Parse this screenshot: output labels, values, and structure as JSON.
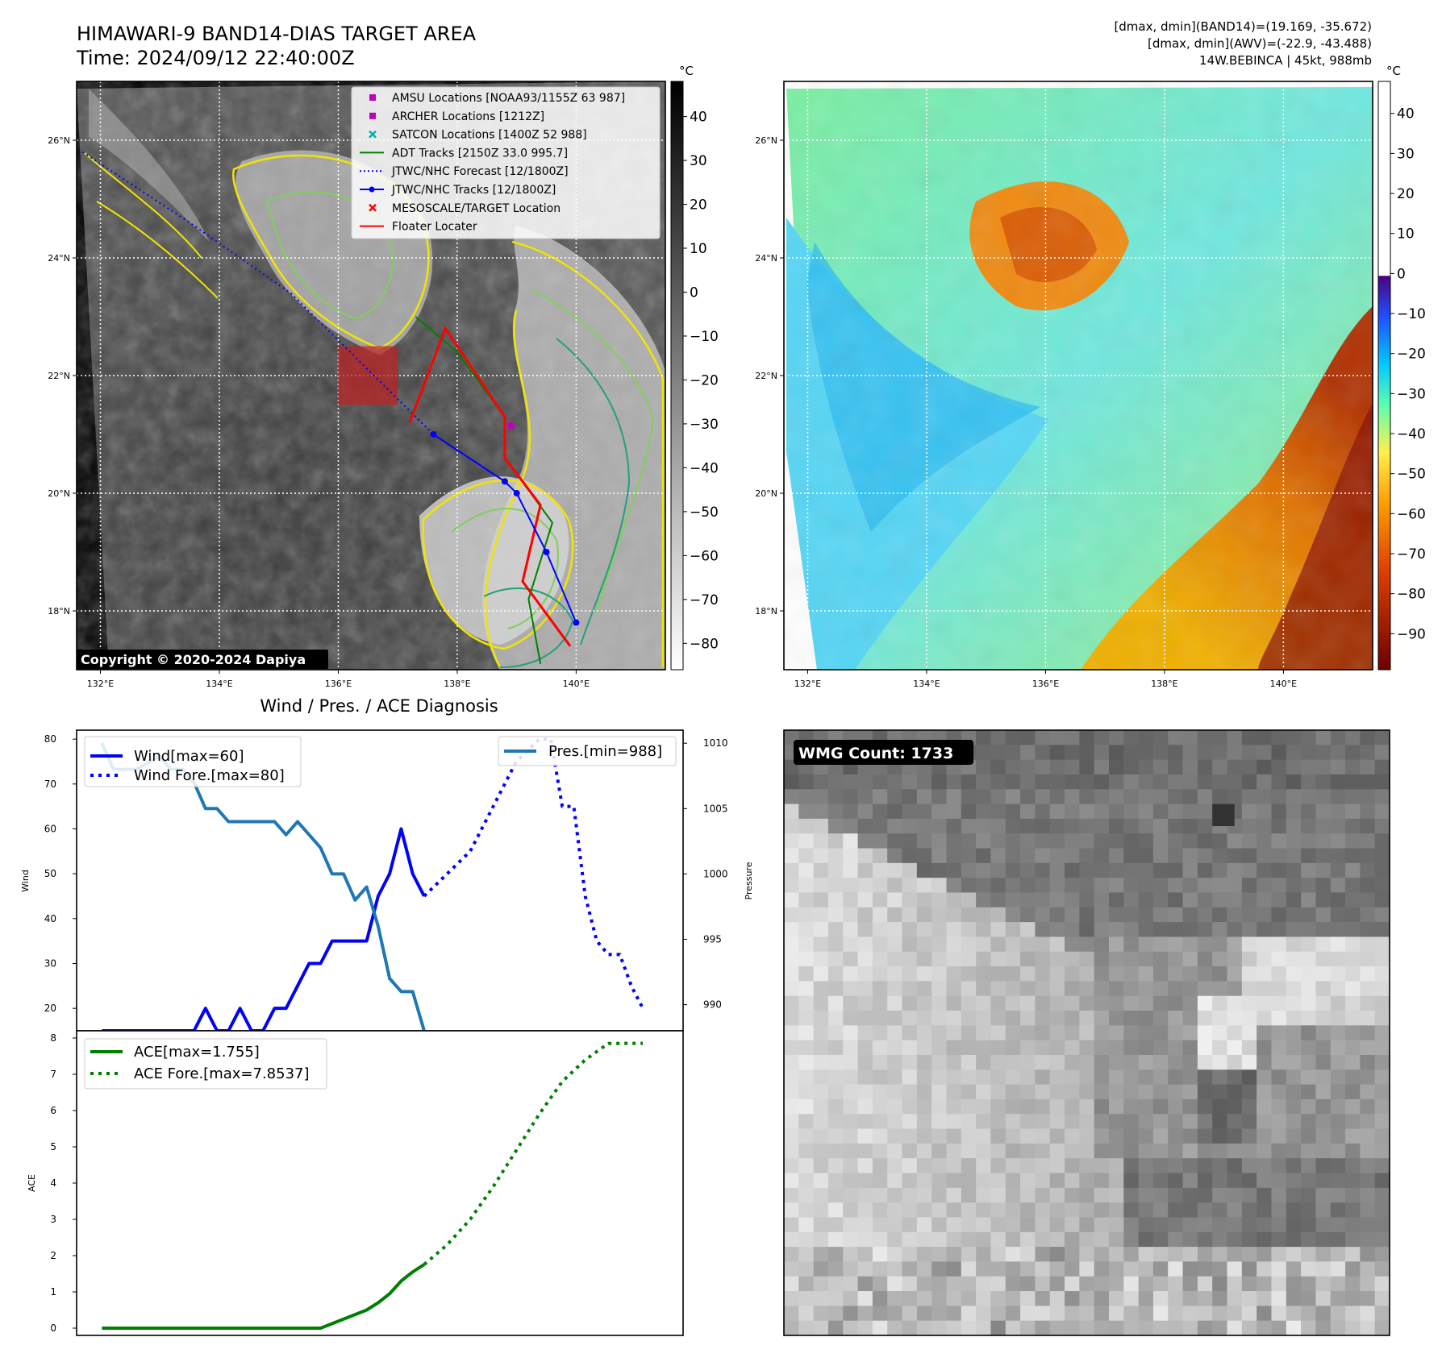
{
  "header": {
    "title_line1": "HIMAWARI-9 BAND14-DIAS TARGET AREA",
    "title_line2": "Time: 2024/09/12 22:40:00Z",
    "info_line1": "[dmax, dmin](BAND14)=(19.169, -35.672)",
    "info_line2": "[dmax, dmin](AWV)=(-22.9, -43.488)",
    "info_line3": "14W.BEBINCA | 45kt, 988mb"
  },
  "map": {
    "lon_ticks": [
      "132°E",
      "134°E",
      "136°E",
      "138°E",
      "140°E"
    ],
    "lat_ticks": [
      "26°N",
      "24°N",
      "22°N",
      "20°N",
      "18°N"
    ],
    "lon_range": [
      131.6,
      141.5
    ],
    "lat_range": [
      17.0,
      27.0
    ],
    "copyright": "Copyright © 2020-2024 Dapiya",
    "legend": [
      {
        "label": "AMSU Locations [NOAA93/1155Z 63 987]",
        "color": "#c000c0",
        "marker": "square"
      },
      {
        "label": "ARCHER Locations [1212Z]",
        "color": "#c000c0",
        "marker": "square"
      },
      {
        "label": "SATCON Locations [1400Z 52 988]",
        "color": "#00b0b0",
        "marker": "x"
      },
      {
        "label": "ADT Tracks [2150Z 33.0 995.7]",
        "color": "#008000",
        "marker": "line"
      },
      {
        "label": "JTWC/NHC Forecast [12/1800Z]",
        "color": "#0000ff",
        "marker": "dotted"
      },
      {
        "label": "JTWC/NHC Tracks [12/1800Z]",
        "color": "#0000ff",
        "marker": "line-dot"
      },
      {
        "label": "MESOSCALE/TARGET Location",
        "color": "#ff0000",
        "marker": "x"
      },
      {
        "label": "Floater Locater",
        "color": "#ff0000",
        "marker": "line"
      }
    ],
    "jtwc_track": [
      [
        137.6,
        21.0
      ],
      [
        138.8,
        20.2
      ],
      [
        139.0,
        20.0
      ],
      [
        139.5,
        19.0
      ],
      [
        140.0,
        17.8
      ]
    ],
    "jtwc_forecast": [
      [
        131.7,
        25.8
      ],
      [
        133.5,
        24.6
      ],
      [
        135.2,
        23.4
      ],
      [
        136.5,
        22.1
      ],
      [
        137.6,
        21.0
      ]
    ],
    "adt_track": [
      [
        137.3,
        23.0
      ],
      [
        138.0,
        22.4
      ],
      [
        138.8,
        21.3
      ],
      [
        138.8,
        20.6
      ],
      [
        139.6,
        19.5
      ],
      [
        139.2,
        18.2
      ],
      [
        139.4,
        17.1
      ]
    ],
    "floater_track": [
      [
        137.2,
        21.2
      ],
      [
        137.8,
        22.8
      ],
      [
        138.2,
        22.2
      ],
      [
        138.8,
        21.3
      ],
      [
        138.8,
        20.6
      ],
      [
        139.4,
        19.8
      ],
      [
        139.1,
        18.5
      ],
      [
        139.9,
        17.4
      ]
    ],
    "target_box": {
      "lon": [
        136.0,
        137.0
      ],
      "lat": [
        21.5,
        22.5
      ]
    },
    "amsu_marker": [
      138.9,
      21.15
    ],
    "colorbar1": {
      "unit": "°C",
      "ticks": [
        "40",
        "30",
        "20",
        "10",
        "0",
        "−10",
        "−20",
        "−30",
        "−40",
        "−50",
        "−60",
        "−70",
        "−80"
      ]
    },
    "colorbar2": {
      "unit": "°C",
      "ticks": [
        "40",
        "30",
        "20",
        "10",
        "0",
        "−10",
        "−20",
        "−30",
        "−40",
        "−50",
        "−60",
        "−70",
        "−80",
        "−90"
      ]
    }
  },
  "chart_data": [
    {
      "type": "line",
      "title": "Wind / Pres. / ACE Diagnosis",
      "ylabel": "Wind",
      "ylim": [
        15,
        82
      ],
      "y_ticks": [
        "80",
        "70",
        "60",
        "50",
        "40",
        "30",
        "20"
      ],
      "y2label": "Pressure",
      "y2lim": [
        988,
        1011
      ],
      "y2_ticks": [
        "1010",
        "1005",
        "1000",
        "995",
        "990"
      ],
      "x": [
        0,
        1,
        2,
        3,
        4,
        5,
        6,
        7,
        8,
        9,
        10,
        11,
        12,
        13,
        14,
        15,
        16,
        17,
        18,
        19,
        20,
        21,
        22,
        23,
        24,
        25,
        26,
        27,
        28,
        29,
        30,
        31,
        32,
        33,
        34,
        35,
        36,
        37,
        38,
        39,
        40,
        41,
        42,
        43,
        44,
        45,
        46,
        47,
        48
      ],
      "series": [
        {
          "name": "Wind[max=60]",
          "color": "#0000ff",
          "style": "solid",
          "points": [
            [
              0,
              15
            ],
            [
              8,
              15
            ],
            [
              9,
              20
            ],
            [
              10,
              15
            ],
            [
              11,
              15
            ],
            [
              12,
              20
            ],
            [
              13,
              15
            ],
            [
              14,
              15
            ],
            [
              15,
              20
            ],
            [
              16,
              20
            ],
            [
              17,
              25
            ],
            [
              18,
              30
            ],
            [
              19,
              30
            ],
            [
              20,
              35
            ],
            [
              21,
              35
            ],
            [
              22,
              35
            ],
            [
              23,
              35
            ],
            [
              24,
              45
            ],
            [
              25,
              50
            ],
            [
              26,
              60
            ],
            [
              27,
              50
            ],
            [
              28,
              45
            ]
          ]
        },
        {
          "name": "Wind Fore.[max=80]",
          "color": "#0000ff",
          "style": "dotted",
          "points": [
            [
              28,
              45
            ],
            [
              30,
              50
            ],
            [
              32,
              55
            ],
            [
              34,
              65
            ],
            [
              36,
              75
            ],
            [
              38,
              80
            ],
            [
              39,
              80
            ],
            [
              40,
              65
            ],
            [
              41,
              65
            ],
            [
              42,
              45
            ],
            [
              43,
              35
            ],
            [
              44,
              32
            ],
            [
              45,
              32
            ],
            [
              46,
              25
            ],
            [
              47,
              20
            ]
          ]
        },
        {
          "name": "Pres.[min=988]",
          "color": "#1f77b4",
          "style": "solid",
          "axis": "y2",
          "points": [
            [
              0,
              1010
            ],
            [
              1,
              1008
            ],
            [
              3,
              1008
            ],
            [
              5,
              1009
            ],
            [
              6,
              1008
            ],
            [
              7,
              1008
            ],
            [
              8,
              1007
            ],
            [
              9,
              1005
            ],
            [
              10,
              1005
            ],
            [
              11,
              1004
            ],
            [
              13,
              1004
            ],
            [
              15,
              1004
            ],
            [
              16,
              1003
            ],
            [
              17,
              1004
            ],
            [
              18,
              1003
            ],
            [
              19,
              1002
            ],
            [
              20,
              1000
            ],
            [
              21,
              1000
            ],
            [
              22,
              998
            ],
            [
              23,
              999
            ],
            [
              24,
              996
            ],
            [
              25,
              992
            ],
            [
              26,
              991
            ],
            [
              27,
              991
            ],
            [
              28,
              988
            ]
          ]
        }
      ]
    },
    {
      "type": "line",
      "ylabel": "ACE",
      "ylim": [
        -0.2,
        8.2
      ],
      "y_ticks": [
        "8",
        "7",
        "6",
        "5",
        "4",
        "3",
        "2",
        "1",
        "0"
      ],
      "x_range": [
        -2.2,
        50.5
      ],
      "series": [
        {
          "name": "ACE[max=1.755]",
          "color": "#008000",
          "style": "solid",
          "points": [
            [
              0,
              0
            ],
            [
              19,
              0
            ],
            [
              21,
              0.25
            ],
            [
              23,
              0.5
            ],
            [
              24,
              0.7
            ],
            [
              25,
              0.95
            ],
            [
              26,
              1.3
            ],
            [
              27,
              1.55
            ],
            [
              28,
              1.755
            ]
          ]
        },
        {
          "name": "ACE Fore.[max=7.8537]",
          "color": "#008000",
          "style": "dotted",
          "points": [
            [
              28,
              1.755
            ],
            [
              30,
              2.3
            ],
            [
              32,
              3.0
            ],
            [
              34,
              3.9
            ],
            [
              36,
              4.9
            ],
            [
              38,
              5.9
            ],
            [
              40,
              6.8
            ],
            [
              42,
              7.4
            ],
            [
              44,
              7.85
            ],
            [
              47,
              7.8537
            ]
          ]
        }
      ]
    }
  ],
  "wmg": {
    "label": "WMG Count: 1733"
  }
}
